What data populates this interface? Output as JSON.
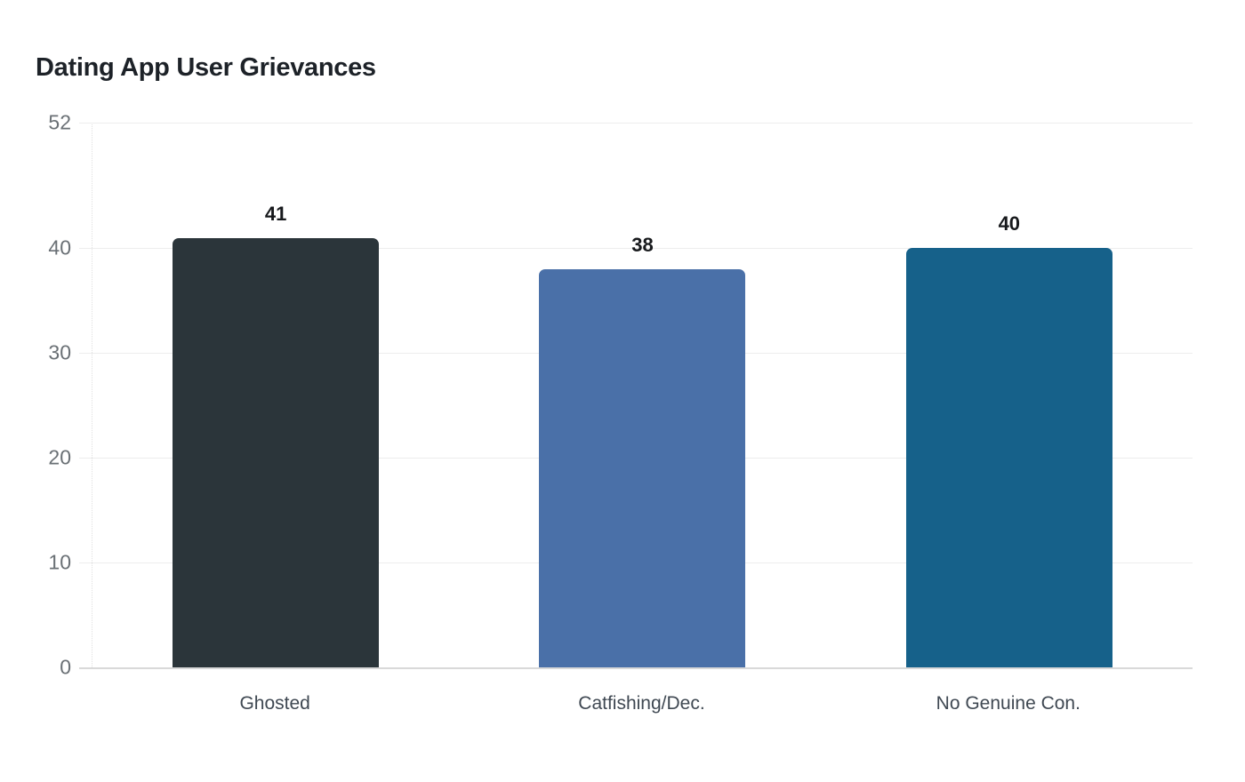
{
  "header": {
    "title": "Dating App User Grievances"
  },
  "chart_data": {
    "type": "bar",
    "title": "Dating App User Grievances",
    "categories": [
      "Ghosted",
      "Catfishing/Dec.",
      "No Genuine Con."
    ],
    "values": [
      41,
      38,
      40
    ],
    "value_labels": [
      "41",
      "38",
      "40"
    ],
    "bar_colors": [
      "#2b353a",
      "#4a70a8",
      "#16618a"
    ],
    "ylim": [
      0,
      52
    ],
    "yticks": [
      0,
      10,
      20,
      30,
      40,
      52
    ],
    "grid": "horizontal-only",
    "legend": "none",
    "xlabel": "",
    "ylabel": ""
  },
  "style": {
    "background": "#ffffff",
    "title_color": "#1d2228",
    "tick_label_color": "#6a7075",
    "category_label_color": "#3f4852",
    "value_label_color": "#17191c",
    "gridline_color": "#ededed",
    "baseline_color": "#d9d9d9",
    "axis_line_color": "#e0e0e0"
  }
}
